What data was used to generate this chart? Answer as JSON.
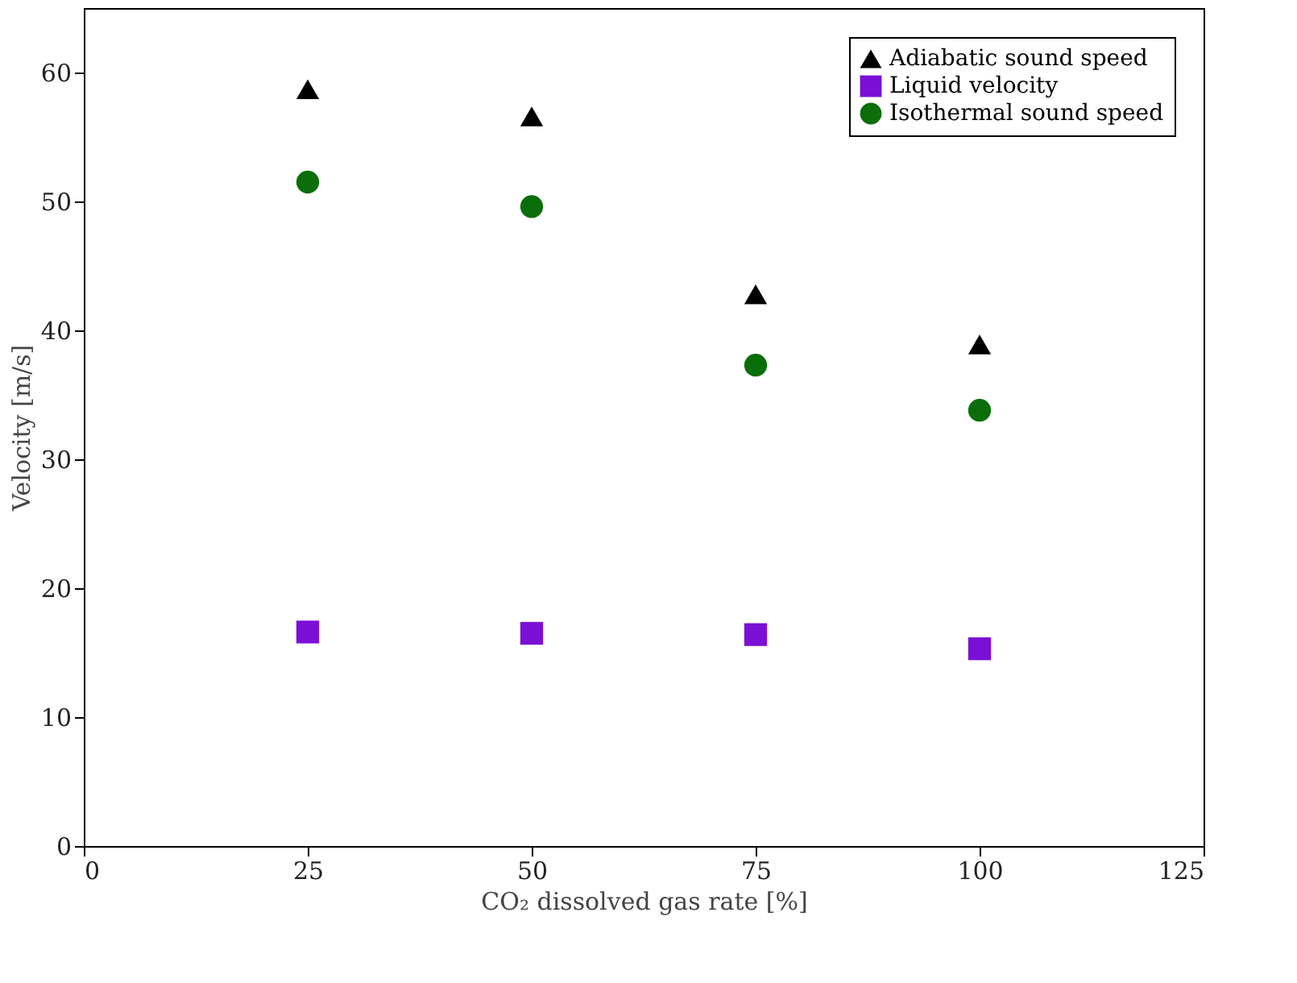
{
  "chart_data": {
    "type": "scatter",
    "xlabel": "CO₂ dissolved gas rate [%]",
    "ylabel": "Velocity [m/s]",
    "x": [
      25,
      50,
      75,
      100
    ],
    "series": [
      {
        "name": "Adiabatic sound speed",
        "color": "#000000",
        "marker": "triangle",
        "values": [
          58.7,
          56.6,
          42.8,
          38.9
        ]
      },
      {
        "name": "Liquid velocity",
        "color": "#7b0fd6",
        "marker": "square",
        "values": [
          16.6,
          16.5,
          16.4,
          15.3
        ]
      },
      {
        "name": "Isothermal sound speed",
        "color": "#0a6e0a",
        "marker": "circle",
        "values": [
          51.5,
          49.6,
          37.3,
          33.8
        ]
      }
    ],
    "xlim": [
      0,
      125
    ],
    "xticks": [
      0,
      25,
      50,
      75,
      100,
      125
    ],
    "ylim": [
      0,
      65
    ],
    "yticks": [
      0,
      10,
      20,
      30,
      40,
      50,
      60
    ],
    "grid": false,
    "legend": "top right"
  }
}
